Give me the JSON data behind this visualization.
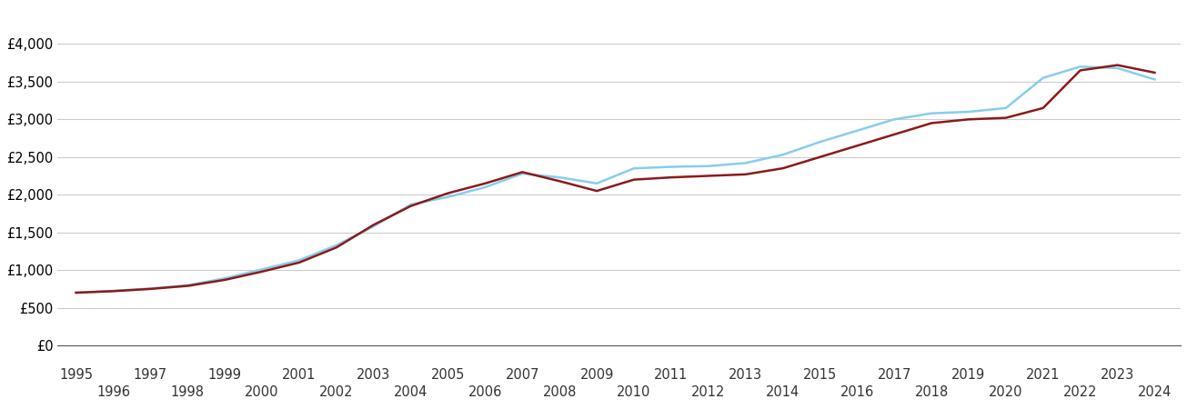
{
  "gl_gloucester": {
    "years": [
      1995,
      1996,
      1997,
      1998,
      1999,
      2000,
      2001,
      2002,
      2003,
      2004,
      2005,
      2006,
      2007,
      2008,
      2009,
      2010,
      2011,
      2012,
      2013,
      2014,
      2015,
      2016,
      2017,
      2018,
      2019,
      2020,
      2021,
      2022,
      2023,
      2024
    ],
    "values": [
      700,
      720,
      750,
      790,
      870,
      980,
      1100,
      1300,
      1600,
      1850,
      2020,
      2150,
      2300,
      2180,
      2050,
      2200,
      2230,
      2250,
      2270,
      2350,
      2500,
      2650,
      2800,
      2950,
      3000,
      3020,
      3150,
      3650,
      3720,
      3620
    ]
  },
  "england_wales": {
    "years": [
      1995,
      1996,
      1997,
      1998,
      1999,
      2000,
      2001,
      2002,
      2003,
      2004,
      2005,
      2006,
      2007,
      2008,
      2009,
      2010,
      2011,
      2012,
      2013,
      2014,
      2015,
      2016,
      2017,
      2018,
      2019,
      2020,
      2021,
      2022,
      2023,
      2024
    ],
    "values": [
      700,
      725,
      755,
      800,
      890,
      1010,
      1130,
      1330,
      1580,
      1870,
      1970,
      2100,
      2280,
      2230,
      2150,
      2350,
      2370,
      2380,
      2420,
      2530,
      2700,
      2850,
      3000,
      3080,
      3100,
      3150,
      3550,
      3700,
      3680,
      3530
    ]
  },
  "gl_color": "#8B1A1A",
  "ew_color": "#87CEEB",
  "ylim": [
    0,
    4500
  ],
  "yticks": [
    0,
    500,
    1000,
    1500,
    2000,
    2500,
    3000,
    3500,
    4000
  ],
  "ytick_labels": [
    "£0",
    "£500",
    "£1,000",
    "£1,500",
    "£2,000",
    "£2,500",
    "£3,000",
    "£3,500",
    "£4,000"
  ],
  "xlim_min": 1994.5,
  "xlim_max": 2024.7,
  "background_color": "#ffffff",
  "grid_color": "#cccccc",
  "line_width": 1.8,
  "legend_fontsize": 11,
  "tick_fontsize": 10.5
}
